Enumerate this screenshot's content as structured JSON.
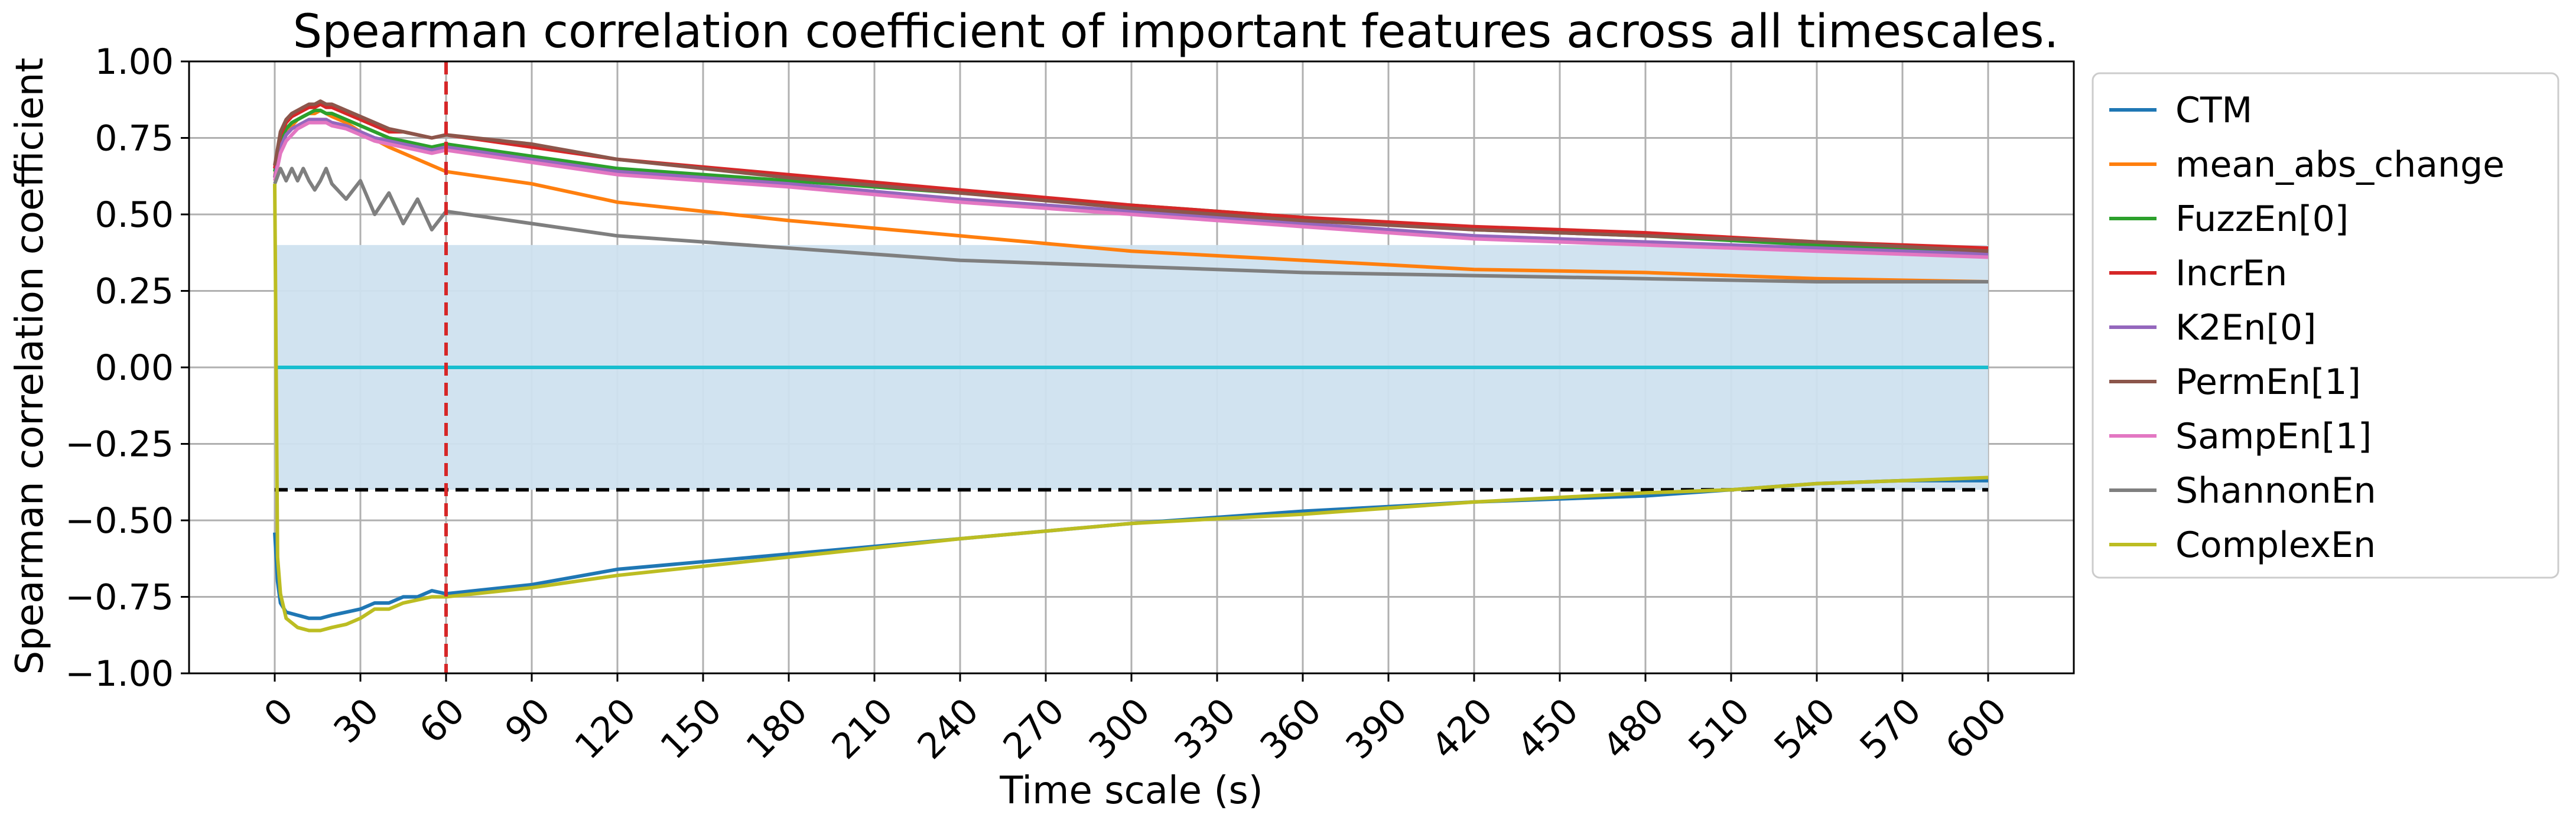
{
  "chart_data": {
    "type": "line",
    "title": "Spearman correlation coefficient of important features across all timescales.",
    "xlabel": "Time scale (s)",
    "ylabel": "Spearman correlation coefficient",
    "xlim": [
      -30,
      630
    ],
    "ylim": [
      -1.0,
      1.0
    ],
    "xticks": [
      0,
      30,
      60,
      90,
      120,
      150,
      180,
      210,
      240,
      270,
      300,
      330,
      360,
      390,
      420,
      450,
      480,
      510,
      540,
      570,
      600
    ],
    "yticks": [
      1.0,
      0.75,
      0.5,
      0.25,
      0.0,
      -0.25,
      -0.5,
      -0.75,
      -1.0
    ],
    "ytick_labels": [
      "1.00",
      "0.75",
      "0.50",
      "0.25",
      "0.00",
      "−0.25",
      "−0.50",
      "−0.75",
      "−1.00"
    ],
    "grid": true,
    "legend_position": "outside-right",
    "band": {
      "y1": -0.4,
      "y2": 0.4,
      "x": [
        0,
        600
      ],
      "color": "#cfe2ef"
    },
    "reference_lines": [
      {
        "orientation": "horizontal",
        "value": 0.0,
        "color": "#17becf",
        "style": "solid"
      },
      {
        "orientation": "horizontal",
        "value": -0.4,
        "color": "#000000",
        "style": "dashed"
      },
      {
        "orientation": "vertical",
        "value": 60,
        "color": "#d62728",
        "style": "dashed"
      }
    ],
    "series": [
      {
        "name": "CTM",
        "color": "#1f77b4",
        "x": [
          0,
          1,
          2,
          4,
          8,
          12,
          16,
          20,
          25,
          30,
          35,
          40,
          45,
          50,
          55,
          60,
          90,
          120,
          180,
          240,
          300,
          360,
          420,
          480,
          510,
          540,
          570,
          600
        ],
        "y": [
          -0.54,
          -0.7,
          -0.77,
          -0.8,
          -0.81,
          -0.82,
          -0.82,
          -0.81,
          -0.8,
          -0.79,
          -0.77,
          -0.77,
          -0.75,
          -0.75,
          -0.73,
          -0.74,
          -0.71,
          -0.66,
          -0.61,
          -0.56,
          -0.51,
          -0.47,
          -0.44,
          -0.42,
          -0.4,
          -0.38,
          -0.37,
          -0.37
        ]
      },
      {
        "name": "mean_abs_change",
        "color": "#ff7f0e",
        "x": [
          0,
          1,
          2,
          4,
          6,
          8,
          10,
          12,
          14,
          16,
          18,
          20,
          25,
          30,
          40,
          50,
          60,
          90,
          120,
          180,
          240,
          300,
          360,
          420,
          480,
          540,
          600
        ],
        "y": [
          0.62,
          0.7,
          0.74,
          0.77,
          0.79,
          0.81,
          0.82,
          0.83,
          0.83,
          0.84,
          0.83,
          0.82,
          0.8,
          0.77,
          0.72,
          0.68,
          0.64,
          0.6,
          0.54,
          0.48,
          0.43,
          0.38,
          0.35,
          0.32,
          0.31,
          0.29,
          0.28
        ]
      },
      {
        "name": "FuzzEn[0]",
        "color": "#2ca02c",
        "x": [
          0,
          2,
          4,
          6,
          8,
          10,
          12,
          14,
          16,
          18,
          20,
          25,
          30,
          35,
          40,
          45,
          50,
          55,
          60,
          90,
          120,
          180,
          240,
          300,
          360,
          420,
          480,
          540,
          600
        ],
        "y": [
          0.64,
          0.74,
          0.78,
          0.8,
          0.81,
          0.82,
          0.83,
          0.84,
          0.84,
          0.83,
          0.83,
          0.81,
          0.79,
          0.77,
          0.75,
          0.74,
          0.73,
          0.72,
          0.73,
          0.69,
          0.65,
          0.61,
          0.57,
          0.53,
          0.49,
          0.45,
          0.43,
          0.4,
          0.38
        ]
      },
      {
        "name": "IncrEn",
        "color": "#d62728",
        "x": [
          0,
          2,
          4,
          6,
          8,
          10,
          12,
          14,
          16,
          18,
          20,
          25,
          30,
          35,
          40,
          45,
          50,
          55,
          60,
          90,
          120,
          180,
          240,
          300,
          360,
          420,
          480,
          540,
          600
        ],
        "y": [
          0.65,
          0.76,
          0.8,
          0.82,
          0.83,
          0.84,
          0.85,
          0.85,
          0.86,
          0.85,
          0.85,
          0.83,
          0.81,
          0.79,
          0.77,
          0.77,
          0.76,
          0.75,
          0.76,
          0.72,
          0.68,
          0.63,
          0.58,
          0.53,
          0.49,
          0.46,
          0.44,
          0.41,
          0.39
        ]
      },
      {
        "name": "K2En[0]",
        "color": "#9467bd",
        "x": [
          0,
          2,
          4,
          6,
          8,
          10,
          12,
          14,
          16,
          18,
          20,
          25,
          30,
          35,
          40,
          45,
          50,
          55,
          60,
          90,
          120,
          180,
          240,
          300,
          360,
          420,
          480,
          540,
          600
        ],
        "y": [
          0.62,
          0.72,
          0.76,
          0.78,
          0.79,
          0.8,
          0.81,
          0.81,
          0.81,
          0.81,
          0.8,
          0.79,
          0.77,
          0.75,
          0.74,
          0.73,
          0.72,
          0.71,
          0.72,
          0.68,
          0.64,
          0.6,
          0.55,
          0.51,
          0.47,
          0.43,
          0.41,
          0.39,
          0.37
        ]
      },
      {
        "name": "PermEn[1]",
        "color": "#8c564b",
        "x": [
          0,
          2,
          4,
          6,
          8,
          10,
          12,
          14,
          16,
          18,
          20,
          25,
          30,
          35,
          40,
          45,
          50,
          55,
          60,
          90,
          120,
          180,
          240,
          300,
          360,
          420,
          480,
          540,
          600
        ],
        "y": [
          0.66,
          0.77,
          0.81,
          0.83,
          0.84,
          0.85,
          0.86,
          0.86,
          0.87,
          0.86,
          0.86,
          0.84,
          0.82,
          0.8,
          0.78,
          0.77,
          0.76,
          0.75,
          0.76,
          0.73,
          0.68,
          0.62,
          0.57,
          0.52,
          0.48,
          0.45,
          0.43,
          0.41,
          0.38
        ]
      },
      {
        "name": "SampEn[1]",
        "color": "#e377c2",
        "x": [
          0,
          2,
          4,
          6,
          8,
          10,
          12,
          14,
          16,
          18,
          20,
          25,
          30,
          35,
          40,
          45,
          50,
          55,
          60,
          90,
          120,
          180,
          240,
          300,
          360,
          420,
          480,
          540,
          600
        ],
        "y": [
          0.61,
          0.7,
          0.74,
          0.76,
          0.78,
          0.79,
          0.8,
          0.8,
          0.8,
          0.8,
          0.79,
          0.78,
          0.76,
          0.74,
          0.73,
          0.72,
          0.71,
          0.7,
          0.71,
          0.67,
          0.63,
          0.59,
          0.54,
          0.5,
          0.46,
          0.42,
          0.4,
          0.38,
          0.36
        ]
      },
      {
        "name": "ShannonEn",
        "color": "#7f7f7f",
        "x": [
          0,
          2,
          4,
          6,
          8,
          10,
          12,
          14,
          16,
          18,
          20,
          25,
          30,
          35,
          40,
          45,
          50,
          55,
          60,
          90,
          120,
          180,
          240,
          300,
          360,
          420,
          480,
          540,
          600
        ],
        "y": [
          0.6,
          0.65,
          0.61,
          0.65,
          0.61,
          0.65,
          0.61,
          0.58,
          0.61,
          0.65,
          0.6,
          0.55,
          0.61,
          0.5,
          0.57,
          0.47,
          0.55,
          0.45,
          0.51,
          0.47,
          0.43,
          0.39,
          0.35,
          0.33,
          0.31,
          0.3,
          0.29,
          0.28,
          0.28
        ]
      },
      {
        "name": "ComplexEn",
        "color": "#bcbd22",
        "x": [
          0,
          1,
          2,
          4,
          8,
          12,
          16,
          20,
          25,
          30,
          35,
          40,
          45,
          50,
          55,
          60,
          90,
          120,
          180,
          240,
          300,
          360,
          420,
          480,
          510,
          540,
          570,
          600
        ],
        "y": [
          0.6,
          -0.62,
          -0.74,
          -0.82,
          -0.85,
          -0.86,
          -0.86,
          -0.85,
          -0.84,
          -0.82,
          -0.79,
          -0.79,
          -0.77,
          -0.76,
          -0.75,
          -0.75,
          -0.72,
          -0.68,
          -0.62,
          -0.56,
          -0.51,
          -0.48,
          -0.44,
          -0.41,
          -0.4,
          -0.38,
          -0.37,
          -0.36
        ]
      }
    ]
  }
}
